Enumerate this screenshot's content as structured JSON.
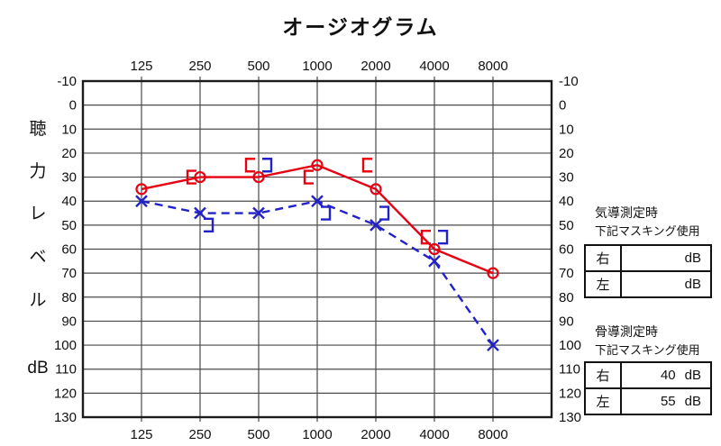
{
  "title": "オージオグラム",
  "y_axis": {
    "title_chars": [
      "聴",
      "力",
      "レ",
      "ベ",
      "ル",
      "dB"
    ]
  },
  "colors": {
    "right_ear_red": "#e60012",
    "left_ear_blue": "#2222c8",
    "grid_line": "#4a4a4a",
    "border": "#1b1b1b"
  },
  "chart_data": {
    "type": "line",
    "title": "オージオグラム",
    "x": [
      125,
      250,
      500,
      1000,
      2000,
      4000,
      8000
    ],
    "ylim": [
      -10,
      130
    ],
    "ytick_step": 10,
    "grid": true,
    "y_axis_label": "聴力レベル dB",
    "series": [
      {
        "name": "right-ear-air-conduction",
        "marker": "circle",
        "line": "solid",
        "color": "#e60012",
        "values": [
          35,
          30,
          30,
          25,
          35,
          60,
          70
        ]
      },
      {
        "name": "left-ear-air-conduction",
        "marker": "x",
        "line": "dashed",
        "color": "#2222c8",
        "values": [
          40,
          45,
          45,
          40,
          50,
          65,
          100
        ]
      },
      {
        "name": "right-ear-bone-conduction",
        "marker": "bracket-left",
        "line": "none",
        "color": "#e60012",
        "values": [
          null,
          30,
          25,
          30,
          25,
          55,
          null
        ]
      },
      {
        "name": "left-ear-bone-conduction",
        "marker": "bracket-right",
        "line": "none",
        "color": "#2222c8",
        "values": [
          null,
          50,
          25,
          45,
          45,
          55,
          null
        ]
      }
    ]
  },
  "masking": {
    "air": {
      "title_line1": "気導測定時",
      "title_line2": "下記マスキング使用",
      "rows": [
        {
          "label": "右",
          "value": "",
          "unit": "dB"
        },
        {
          "label": "左",
          "value": "",
          "unit": "dB"
        }
      ]
    },
    "bone": {
      "title_line1": "骨導測定時",
      "title_line2": "下記マスキング使用",
      "rows": [
        {
          "label": "右",
          "value": "40",
          "unit": "dB"
        },
        {
          "label": "左",
          "value": "55",
          "unit": "dB"
        }
      ]
    }
  }
}
